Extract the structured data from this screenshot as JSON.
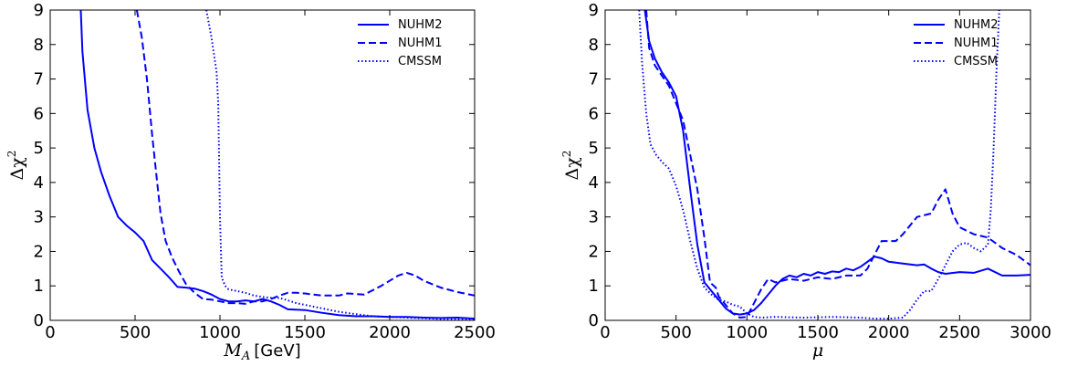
{
  "chart_data": [
    {
      "type": "line",
      "xlabel_symbol": "M",
      "xlabel_sub": "A",
      "xlabel_unit": "[GeV]",
      "ylabel_symbol": "Δχ",
      "ylabel_sup": "2",
      "xlim": [
        0,
        2500
      ],
      "ylim": [
        0,
        9
      ],
      "xticks": [
        "0",
        "500",
        "1000",
        "1500",
        "2000",
        "2500"
      ],
      "yticks": [
        "0",
        "1",
        "2",
        "3",
        "4",
        "5",
        "6",
        "7",
        "8",
        "9"
      ],
      "legend_position": "top-right",
      "series": [
        {
          "name": "NUHM2",
          "style": "solid",
          "color": "#0000ff",
          "points": [
            [
              180,
              9
            ],
            [
              190,
              7.8
            ],
            [
              220,
              6.1
            ],
            [
              260,
              5.0
            ],
            [
              300,
              4.3
            ],
            [
              350,
              3.6
            ],
            [
              400,
              3.0
            ],
            [
              450,
              2.75
            ],
            [
              500,
              2.55
            ],
            [
              550,
              2.3
            ],
            [
              600,
              1.75
            ],
            [
              650,
              1.5
            ],
            [
              700,
              1.25
            ],
            [
              750,
              0.97
            ],
            [
              800,
              0.95
            ],
            [
              850,
              0.92
            ],
            [
              900,
              0.85
            ],
            [
              950,
              0.75
            ],
            [
              1000,
              0.62
            ],
            [
              1050,
              0.55
            ],
            [
              1100,
              0.55
            ],
            [
              1150,
              0.58
            ],
            [
              1200,
              0.55
            ],
            [
              1250,
              0.62
            ],
            [
              1300,
              0.55
            ],
            [
              1350,
              0.45
            ],
            [
              1400,
              0.32
            ],
            [
              1500,
              0.3
            ],
            [
              1600,
              0.22
            ],
            [
              1700,
              0.15
            ],
            [
              1800,
              0.12
            ],
            [
              1900,
              0.12
            ],
            [
              2000,
              0.1
            ],
            [
              2100,
              0.1
            ],
            [
              2200,
              0.08
            ],
            [
              2300,
              0.07
            ],
            [
              2400,
              0.08
            ],
            [
              2500,
              0.05
            ]
          ]
        },
        {
          "name": "NUHM1",
          "style": "dashed",
          "color": "#0000ff",
          "points": [
            [
              510,
              9
            ],
            [
              540,
              8.2
            ],
            [
              570,
              7.0
            ],
            [
              600,
              5.4
            ],
            [
              630,
              4.0
            ],
            [
              650,
              3.1
            ],
            [
              680,
              2.3
            ],
            [
              720,
              1.8
            ],
            [
              760,
              1.4
            ],
            [
              800,
              1.05
            ],
            [
              850,
              0.8
            ],
            [
              900,
              0.62
            ],
            [
              950,
              0.6
            ],
            [
              1000,
              0.55
            ],
            [
              1050,
              0.5
            ],
            [
              1100,
              0.5
            ],
            [
              1150,
              0.48
            ],
            [
              1200,
              0.55
            ],
            [
              1250,
              0.55
            ],
            [
              1300,
              0.62
            ],
            [
              1350,
              0.72
            ],
            [
              1400,
              0.8
            ],
            [
              1450,
              0.8
            ],
            [
              1500,
              0.78
            ],
            [
              1550,
              0.75
            ],
            [
              1600,
              0.72
            ],
            [
              1700,
              0.72
            ],
            [
              1750,
              0.78
            ],
            [
              1850,
              0.75
            ],
            [
              1950,
              1.0
            ],
            [
              2050,
              1.3
            ],
            [
              2100,
              1.38
            ],
            [
              2150,
              1.3
            ],
            [
              2200,
              1.15
            ],
            [
              2300,
              0.95
            ],
            [
              2400,
              0.82
            ],
            [
              2500,
              0.72
            ]
          ]
        },
        {
          "name": "CMSSM",
          "style": "dotted",
          "color": "#0000ff",
          "points": [
            [
              920,
              9
            ],
            [
              950,
              8.2
            ],
            [
              980,
              7.2
            ],
            [
              990,
              6.3
            ],
            [
              1000,
              3.0
            ],
            [
              1010,
              1.25
            ],
            [
              1030,
              1.0
            ],
            [
              1050,
              0.9
            ],
            [
              1100,
              0.85
            ],
            [
              1150,
              0.8
            ],
            [
              1200,
              0.72
            ],
            [
              1250,
              0.68
            ],
            [
              1300,
              0.65
            ],
            [
              1350,
              0.65
            ],
            [
              1400,
              0.58
            ],
            [
              1450,
              0.5
            ],
            [
              1500,
              0.45
            ],
            [
              1600,
              0.35
            ],
            [
              1700,
              0.25
            ],
            [
              1800,
              0.18
            ],
            [
              1900,
              0.12
            ],
            [
              2000,
              0.1
            ],
            [
              2100,
              0.08
            ],
            [
              2200,
              0.06
            ],
            [
              2300,
              0.04
            ],
            [
              2400,
              0.03
            ],
            [
              2500,
              0.02
            ]
          ]
        }
      ]
    },
    {
      "type": "line",
      "xlabel_symbol": "μ",
      "xlabel_sub": "",
      "xlabel_unit": "",
      "ylabel_symbol": "Δχ",
      "ylabel_sup": "2",
      "xlim": [
        0,
        3000
      ],
      "ylim": [
        0,
        9
      ],
      "xticks": [
        "0",
        "500",
        "1000",
        "1500",
        "2000",
        "2500",
        "3000"
      ],
      "yticks": [
        "0",
        "1",
        "2",
        "3",
        "4",
        "5",
        "6",
        "7",
        "8",
        "9"
      ],
      "legend_position": "top-right",
      "series": [
        {
          "name": "NUHM2",
          "style": "solid",
          "color": "#0000ff",
          "points": [
            [
              280,
              9
            ],
            [
              310,
              8.1
            ],
            [
              350,
              7.6
            ],
            [
              400,
              7.2
            ],
            [
              450,
              6.9
            ],
            [
              500,
              6.5
            ],
            [
              550,
              5.5
            ],
            [
              600,
              3.8
            ],
            [
              650,
              2.2
            ],
            [
              700,
              1.1
            ],
            [
              750,
              0.85
            ],
            [
              800,
              0.6
            ],
            [
              850,
              0.35
            ],
            [
              900,
              0.2
            ],
            [
              950,
              0.17
            ],
            [
              1000,
              0.2
            ],
            [
              1050,
              0.3
            ],
            [
              1100,
              0.5
            ],
            [
              1150,
              0.75
            ],
            [
              1200,
              1.0
            ],
            [
              1250,
              1.2
            ],
            [
              1300,
              1.3
            ],
            [
              1350,
              1.25
            ],
            [
              1400,
              1.35
            ],
            [
              1450,
              1.3
            ],
            [
              1500,
              1.4
            ],
            [
              1550,
              1.35
            ],
            [
              1600,
              1.42
            ],
            [
              1650,
              1.4
            ],
            [
              1700,
              1.5
            ],
            [
              1750,
              1.45
            ],
            [
              1800,
              1.55
            ],
            [
              1850,
              1.7
            ],
            [
              1900,
              1.85
            ],
            [
              1950,
              1.8
            ],
            [
              2000,
              1.7
            ],
            [
              2100,
              1.65
            ],
            [
              2200,
              1.6
            ],
            [
              2250,
              1.62
            ],
            [
              2300,
              1.5
            ],
            [
              2350,
              1.4
            ],
            [
              2400,
              1.35
            ],
            [
              2500,
              1.4
            ],
            [
              2600,
              1.38
            ],
            [
              2700,
              1.5
            ],
            [
              2800,
              1.3
            ],
            [
              2900,
              1.3
            ],
            [
              3000,
              1.32
            ]
          ]
        },
        {
          "name": "NUHM1",
          "style": "dashed",
          "color": "#0000ff",
          "points": [
            [
              290,
              9
            ],
            [
              310,
              7.9
            ],
            [
              350,
              7.4
            ],
            [
              400,
              7.1
            ],
            [
              450,
              6.8
            ],
            [
              500,
              6.3
            ],
            [
              550,
              5.8
            ],
            [
              600,
              4.8
            ],
            [
              650,
              3.8
            ],
            [
              700,
              2.4
            ],
            [
              740,
              1.1
            ],
            [
              780,
              0.95
            ],
            [
              800,
              0.7
            ],
            [
              850,
              0.45
            ],
            [
              900,
              0.2
            ],
            [
              950,
              0.08
            ],
            [
              1000,
              0.1
            ],
            [
              1050,
              0.5
            ],
            [
              1100,
              0.9
            ],
            [
              1150,
              1.2
            ],
            [
              1200,
              1.1
            ],
            [
              1300,
              1.2
            ],
            [
              1400,
              1.15
            ],
            [
              1500,
              1.25
            ],
            [
              1600,
              1.2
            ],
            [
              1700,
              1.3
            ],
            [
              1800,
              1.3
            ],
            [
              1850,
              1.5
            ],
            [
              1900,
              1.9
            ],
            [
              1950,
              2.3
            ],
            [
              2050,
              2.3
            ],
            [
              2100,
              2.5
            ],
            [
              2200,
              3.0
            ],
            [
              2300,
              3.1
            ],
            [
              2350,
              3.5
            ],
            [
              2400,
              3.8
            ],
            [
              2450,
              3.1
            ],
            [
              2500,
              2.7
            ],
            [
              2600,
              2.5
            ],
            [
              2700,
              2.4
            ],
            [
              2800,
              2.1
            ],
            [
              2900,
              1.9
            ],
            [
              3000,
              1.6
            ]
          ]
        },
        {
          "name": "CMSSM",
          "style": "dotted",
          "color": "#0000ff",
          "points": [
            [
              240,
              9
            ],
            [
              260,
              7.5
            ],
            [
              290,
              6.0
            ],
            [
              320,
              5.1
            ],
            [
              360,
              4.8
            ],
            [
              400,
              4.6
            ],
            [
              450,
              4.4
            ],
            [
              500,
              3.9
            ],
            [
              550,
              3.2
            ],
            [
              600,
              2.3
            ],
            [
              650,
              1.5
            ],
            [
              700,
              0.95
            ],
            [
              750,
              0.75
            ],
            [
              800,
              0.6
            ],
            [
              850,
              0.55
            ],
            [
              900,
              0.45
            ],
            [
              950,
              0.4
            ],
            [
              1000,
              0.2
            ],
            [
              1050,
              0.1
            ],
            [
              1100,
              0.08
            ],
            [
              1200,
              0.1
            ],
            [
              1400,
              0.08
            ],
            [
              1600,
              0.1
            ],
            [
              1800,
              0.08
            ],
            [
              1900,
              0.05
            ],
            [
              2000,
              0.05
            ],
            [
              2100,
              0.08
            ],
            [
              2150,
              0.3
            ],
            [
              2200,
              0.6
            ],
            [
              2250,
              0.85
            ],
            [
              2300,
              0.85
            ],
            [
              2350,
              1.2
            ],
            [
              2400,
              1.6
            ],
            [
              2450,
              2.0
            ],
            [
              2500,
              2.2
            ],
            [
              2550,
              2.25
            ],
            [
              2600,
              2.1
            ],
            [
              2650,
              2.0
            ],
            [
              2700,
              2.2
            ],
            [
              2720,
              3.2
            ],
            [
              2740,
              5.0
            ],
            [
              2760,
              7.2
            ],
            [
              2780,
              9.0
            ]
          ]
        }
      ]
    }
  ]
}
